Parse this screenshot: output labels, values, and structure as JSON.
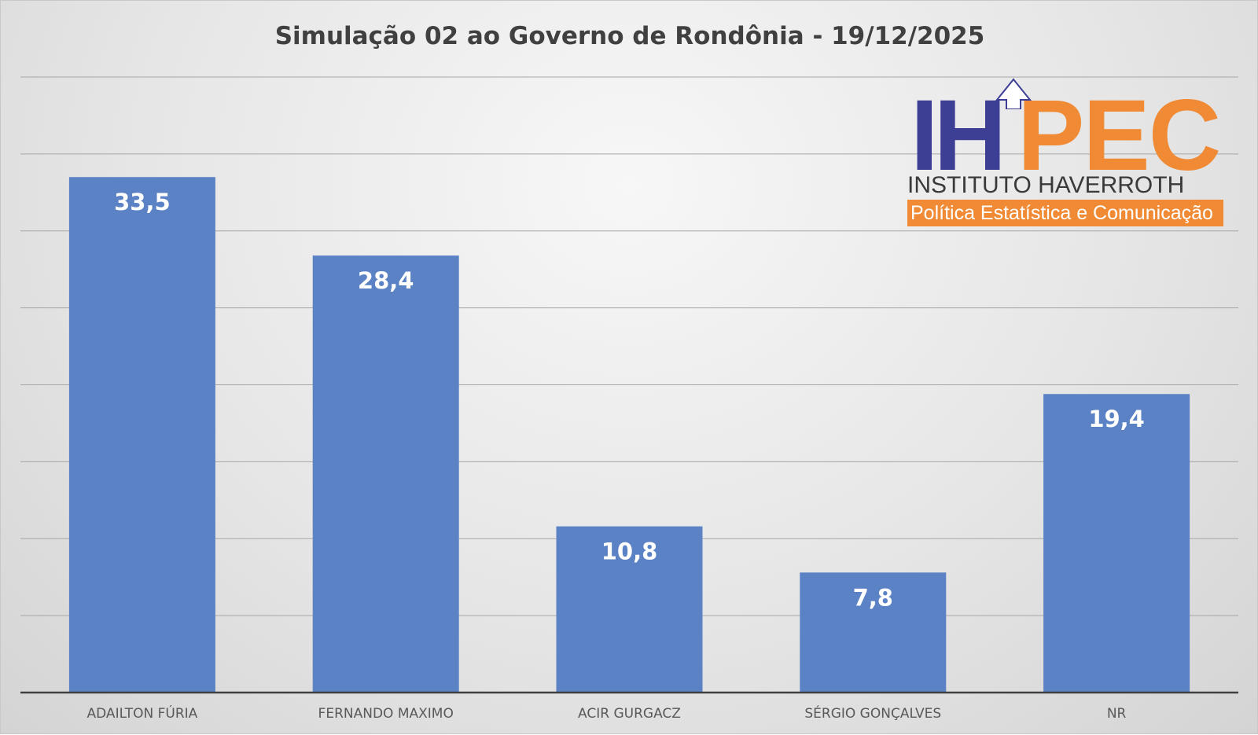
{
  "chart_data": {
    "type": "bar",
    "title": "Simulação 02 ao Governo de Rondônia - 19/12/2025",
    "categories": [
      "ADAILTON FÚRIA",
      "FERNANDO MAXIMO",
      "ACIR GURGACZ",
      "SÉRGIO GONÇALVES",
      "NR"
    ],
    "values": [
      33.5,
      28.4,
      10.8,
      7.8,
      19.4
    ],
    "data_labels": [
      "33,5",
      "28,4",
      "10,8",
      "7,8",
      "19,4"
    ],
    "xlabel": "",
    "ylabel": "",
    "ylim": [
      0,
      40
    ],
    "ytick_step": 5,
    "y_axis_labels_shown": false,
    "grid": true,
    "legend": "none",
    "bar_color": "#5b82c4"
  },
  "logo": {
    "mark_left": "IH",
    "mark_right": "PEC",
    "name": "INSTITUTO HAVERROTH",
    "tagline": "Política Estatística e Comunicação",
    "colors": {
      "blue": "#3d3f95",
      "orange": "#f08a35"
    }
  }
}
